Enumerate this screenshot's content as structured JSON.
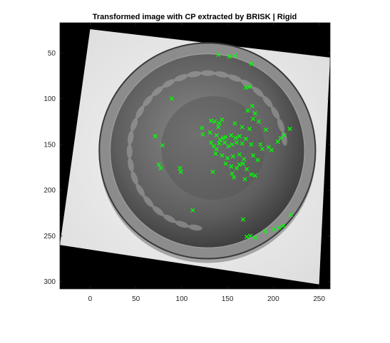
{
  "chart_data": {
    "type": "scatter",
    "title": "Transformed image with CP extracted by BRISK | Rigid",
    "xlabel": "",
    "ylabel": "",
    "xlim": [
      -33,
      262
    ],
    "ylim": [
      308,
      17
    ],
    "y_reversed": true,
    "x_ticks": [
      0,
      50,
      100,
      150,
      200,
      250
    ],
    "y_ticks": [
      50,
      100,
      150,
      200,
      250,
      300
    ],
    "x_tick_labels": [
      "0",
      "50",
      "100",
      "150",
      "200",
      "250"
    ],
    "y_tick_labels": [
      "50",
      "100",
      "150",
      "200",
      "250",
      "300"
    ],
    "image_content": "rotated grayscale photo of a one cent coin on black background",
    "rotated_image_corners": [
      [
        0,
        24
      ],
      [
        262,
        55
      ],
      [
        250,
        303
      ],
      [
        -33,
        260
      ]
    ],
    "marker": "x",
    "marker_color": "#00ff00",
    "background_color": "#000000",
    "coin_edge_color": "#8c8c8c",
    "coin_face_color": "#6a6a6a",
    "points": [
      [
        140,
        52
      ],
      [
        152,
        54
      ],
      [
        158,
        53
      ],
      [
        176,
        62
      ],
      [
        170,
        88
      ],
      [
        174,
        87
      ],
      [
        89,
        100
      ],
      [
        177,
        108
      ],
      [
        178,
        122
      ],
      [
        184,
        125
      ],
      [
        172,
        113
      ],
      [
        180,
        116
      ],
      [
        132,
        124
      ],
      [
        136,
        125
      ],
      [
        141,
        127
      ],
      [
        144,
        123
      ],
      [
        140,
        131
      ],
      [
        131,
        137
      ],
      [
        122,
        132
      ],
      [
        123,
        139
      ],
      [
        158,
        127
      ],
      [
        166,
        131
      ],
      [
        174,
        133
      ],
      [
        192,
        134
      ],
      [
        218,
        133
      ],
      [
        212,
        140
      ],
      [
        208,
        143
      ],
      [
        205,
        147
      ],
      [
        71,
        141
      ],
      [
        79,
        151
      ],
      [
        138,
        140
      ],
      [
        142,
        145
      ],
      [
        145,
        143
      ],
      [
        148,
        142
      ],
      [
        154,
        140
      ],
      [
        159,
        143
      ],
      [
        163,
        141
      ],
      [
        170,
        144
      ],
      [
        176,
        150
      ],
      [
        132,
        148
      ],
      [
        135,
        152
      ],
      [
        138,
        155
      ],
      [
        141,
        149
      ],
      [
        147,
        148
      ],
      [
        151,
        152
      ],
      [
        155,
        150
      ],
      [
        160,
        148
      ],
      [
        166,
        149
      ],
      [
        186,
        150
      ],
      [
        188,
        155
      ],
      [
        195,
        153
      ],
      [
        198,
        156
      ],
      [
        137,
        160
      ],
      [
        144,
        162
      ],
      [
        150,
        165
      ],
      [
        156,
        163
      ],
      [
        163,
        161
      ],
      [
        168,
        166
      ],
      [
        178,
        162
      ],
      [
        183,
        167
      ],
      [
        148,
        171
      ],
      [
        154,
        174
      ],
      [
        160,
        176
      ],
      [
        163,
        172
      ],
      [
        167,
        171
      ],
      [
        171,
        177
      ],
      [
        75,
        172
      ],
      [
        77,
        176
      ],
      [
        98,
        176
      ],
      [
        99,
        180
      ],
      [
        134,
        180
      ],
      [
        155,
        182
      ],
      [
        157,
        186
      ],
      [
        176,
        183
      ],
      [
        180,
        184
      ],
      [
        169,
        188
      ],
      [
        112,
        222
      ],
      [
        167,
        232
      ],
      [
        171,
        251
      ],
      [
        175,
        250
      ],
      [
        180,
        252
      ],
      [
        191,
        245
      ],
      [
        201,
        243
      ],
      [
        206,
        241
      ],
      [
        211,
        239
      ],
      [
        219,
        227
      ]
    ]
  }
}
